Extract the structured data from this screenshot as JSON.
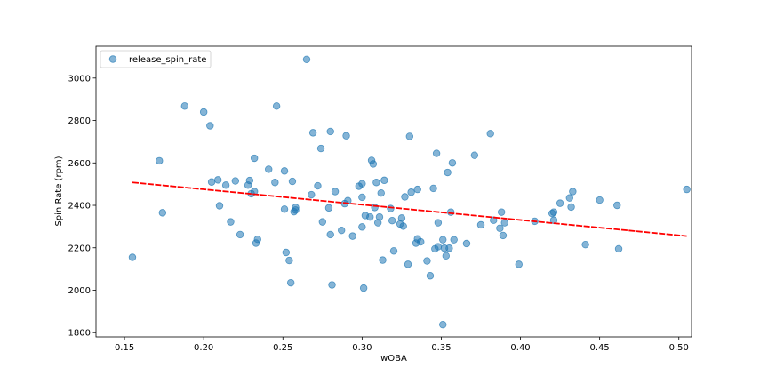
{
  "chart_data": {
    "type": "scatter",
    "xlabel": "wOBA",
    "ylabel": "Spin Rate (rpm)",
    "xlim": [
      0.132,
      0.508
    ],
    "ylim": [
      1780,
      3150
    ],
    "x_ticks": [
      "0.15",
      "0.20",
      "0.25",
      "0.30",
      "0.35",
      "0.40",
      "0.45",
      "0.50"
    ],
    "x_tick_values": [
      0.15,
      0.2,
      0.25,
      0.3,
      0.35,
      0.4,
      0.45,
      0.5
    ],
    "y_ticks": [
      "1800",
      "2000",
      "2200",
      "2400",
      "2600",
      "2800",
      "3000"
    ],
    "y_tick_values": [
      1800,
      2000,
      2200,
      2400,
      2600,
      2800,
      3000
    ],
    "legend": {
      "label": "release_spin_rate",
      "placement": "top-left"
    },
    "grid": false,
    "point_color": "#1f77b4",
    "trend_color": "#ff0000",
    "trend_line": {
      "x": [
        0.155,
        0.505
      ],
      "y": [
        2508,
        2255
      ]
    },
    "series": [
      {
        "name": "release_spin_rate",
        "points": [
          [
            0.155,
            2155
          ],
          [
            0.172,
            2610
          ],
          [
            0.174,
            2365
          ],
          [
            0.188,
            2868
          ],
          [
            0.2,
            2840
          ],
          [
            0.204,
            2775
          ],
          [
            0.205,
            2510
          ],
          [
            0.209,
            2520
          ],
          [
            0.21,
            2398
          ],
          [
            0.214,
            2495
          ],
          [
            0.217,
            2322
          ],
          [
            0.22,
            2515
          ],
          [
            0.223,
            2262
          ],
          [
            0.228,
            2495
          ],
          [
            0.229,
            2517
          ],
          [
            0.23,
            2455
          ],
          [
            0.232,
            2622
          ],
          [
            0.232,
            2465
          ],
          [
            0.233,
            2222
          ],
          [
            0.234,
            2240
          ],
          [
            0.241,
            2570
          ],
          [
            0.245,
            2508
          ],
          [
            0.246,
            2868
          ],
          [
            0.251,
            2562
          ],
          [
            0.251,
            2382
          ],
          [
            0.252,
            2178
          ],
          [
            0.254,
            2140
          ],
          [
            0.255,
            2035
          ],
          [
            0.256,
            2513
          ],
          [
            0.257,
            2370
          ],
          [
            0.258,
            2378
          ],
          [
            0.258,
            2390
          ],
          [
            0.265,
            3088
          ],
          [
            0.268,
            2450
          ],
          [
            0.269,
            2742
          ],
          [
            0.272,
            2492
          ],
          [
            0.274,
            2668
          ],
          [
            0.275,
            2322
          ],
          [
            0.279,
            2388
          ],
          [
            0.28,
            2748
          ],
          [
            0.28,
            2262
          ],
          [
            0.281,
            2025
          ],
          [
            0.283,
            2465
          ],
          [
            0.287,
            2282
          ],
          [
            0.289,
            2408
          ],
          [
            0.29,
            2728
          ],
          [
            0.291,
            2422
          ],
          [
            0.294,
            2255
          ],
          [
            0.298,
            2490
          ],
          [
            0.3,
            2502
          ],
          [
            0.3,
            2438
          ],
          [
            0.3,
            2298
          ],
          [
            0.301,
            2010
          ],
          [
            0.302,
            2352
          ],
          [
            0.305,
            2345
          ],
          [
            0.306,
            2612
          ],
          [
            0.307,
            2595
          ],
          [
            0.308,
            2390
          ],
          [
            0.309,
            2508
          ],
          [
            0.31,
            2318
          ],
          [
            0.311,
            2345
          ],
          [
            0.312,
            2458
          ],
          [
            0.313,
            2142
          ],
          [
            0.314,
            2518
          ],
          [
            0.318,
            2385
          ],
          [
            0.319,
            2328
          ],
          [
            0.32,
            2185
          ],
          [
            0.324,
            2312
          ],
          [
            0.325,
            2340
          ],
          [
            0.326,
            2302
          ],
          [
            0.327,
            2440
          ],
          [
            0.329,
            2122
          ],
          [
            0.33,
            2725
          ],
          [
            0.331,
            2462
          ],
          [
            0.334,
            2222
          ],
          [
            0.335,
            2475
          ],
          [
            0.335,
            2242
          ],
          [
            0.337,
            2228
          ],
          [
            0.341,
            2138
          ],
          [
            0.343,
            2068
          ],
          [
            0.345,
            2480
          ],
          [
            0.346,
            2195
          ],
          [
            0.347,
            2645
          ],
          [
            0.348,
            2318
          ],
          [
            0.348,
            2205
          ],
          [
            0.351,
            2238
          ],
          [
            0.351,
            1838
          ],
          [
            0.352,
            2198
          ],
          [
            0.353,
            2162
          ],
          [
            0.354,
            2555
          ],
          [
            0.355,
            2198
          ],
          [
            0.356,
            2368
          ],
          [
            0.357,
            2600
          ],
          [
            0.358,
            2238
          ],
          [
            0.366,
            2220
          ],
          [
            0.371,
            2636
          ],
          [
            0.375,
            2308
          ],
          [
            0.381,
            2738
          ],
          [
            0.383,
            2330
          ],
          [
            0.387,
            2292
          ],
          [
            0.388,
            2368
          ],
          [
            0.389,
            2258
          ],
          [
            0.39,
            2318
          ],
          [
            0.399,
            2122
          ],
          [
            0.409,
            2325
          ],
          [
            0.42,
            2362
          ],
          [
            0.421,
            2368
          ],
          [
            0.421,
            2330
          ],
          [
            0.425,
            2410
          ],
          [
            0.431,
            2435
          ],
          [
            0.432,
            2392
          ],
          [
            0.433,
            2465
          ],
          [
            0.441,
            2215
          ],
          [
            0.45,
            2425
          ],
          [
            0.461,
            2400
          ],
          [
            0.462,
            2195
          ],
          [
            0.505,
            2475
          ]
        ]
      }
    ]
  }
}
